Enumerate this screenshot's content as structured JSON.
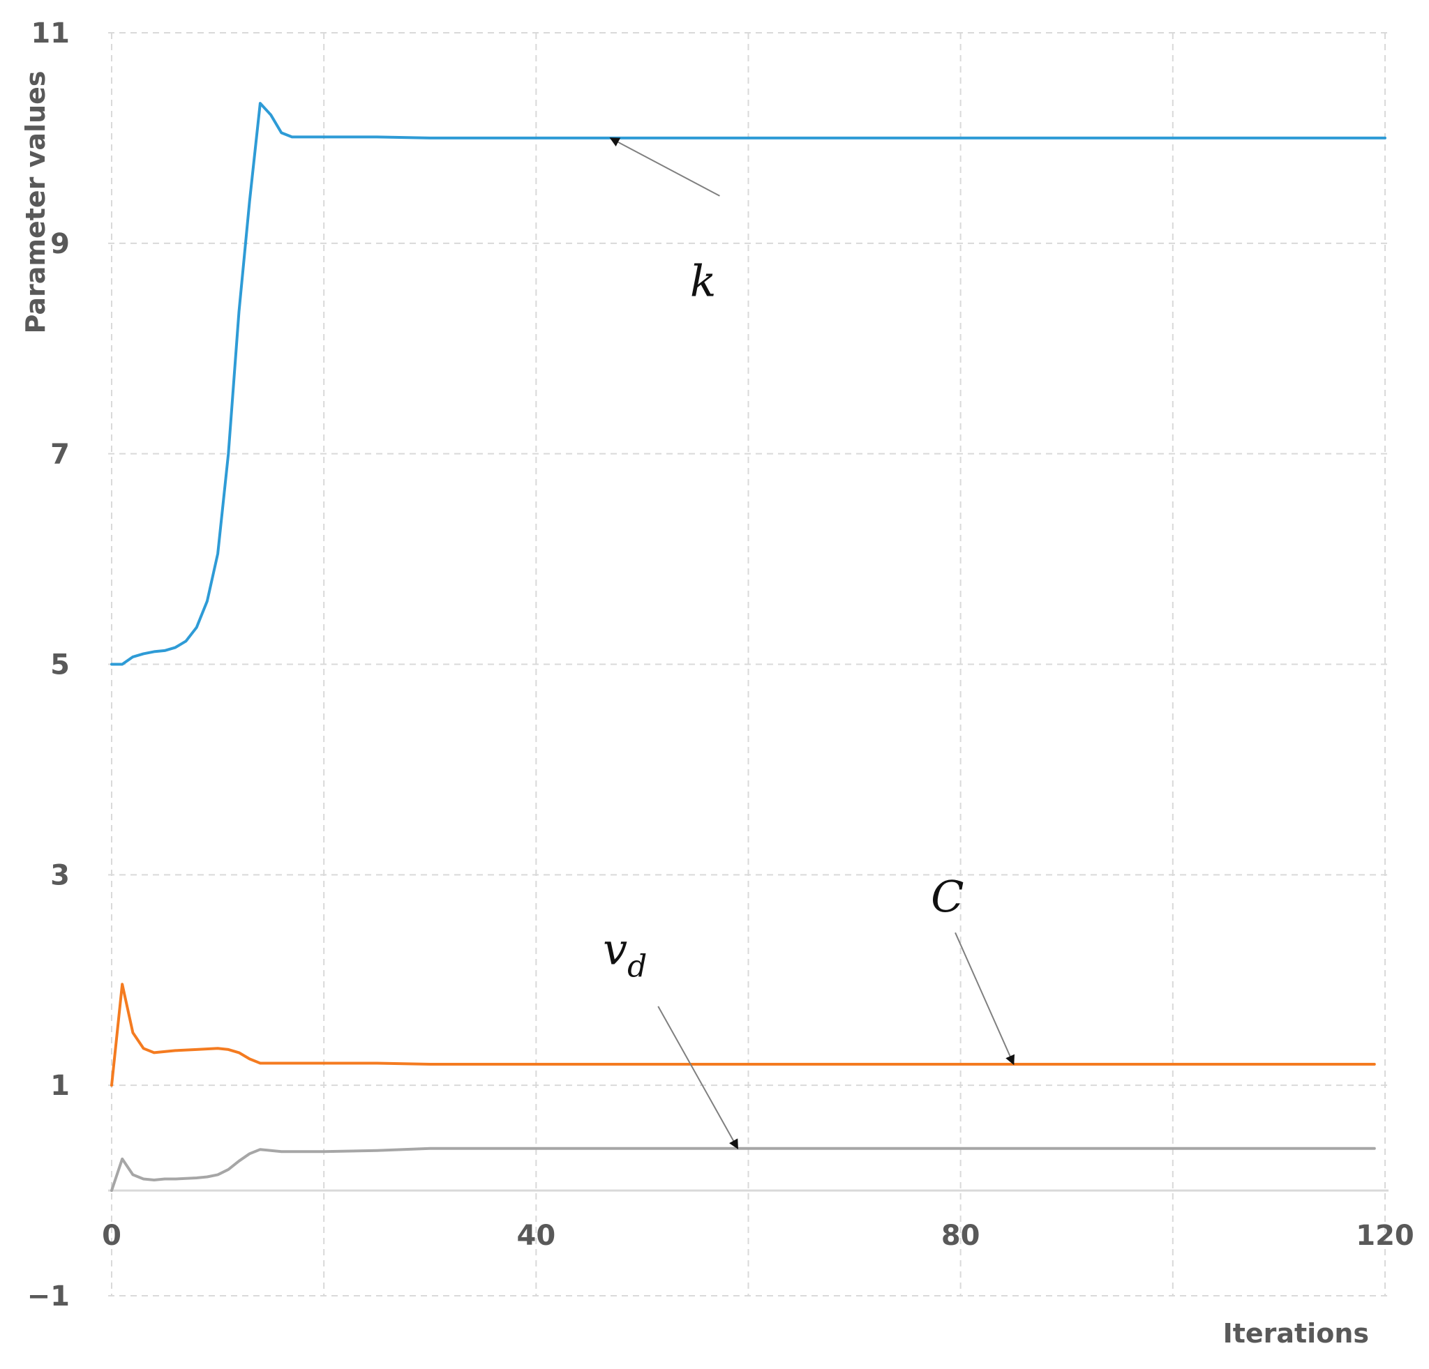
{
  "chart_data": {
    "type": "line",
    "ylabel": "Parameter values",
    "xlabel": "Iterations",
    "xlim": [
      0,
      120
    ],
    "ylim": [
      -1,
      11
    ],
    "x_ticks": [
      0,
      40,
      80,
      120
    ],
    "x_tick_labels": [
      "0",
      "40",
      "80",
      "120"
    ],
    "y_ticks": [
      -1,
      1,
      3,
      5,
      7,
      9,
      11
    ],
    "y_tick_labels": [
      "−1",
      "1",
      "3",
      "5",
      "7",
      "9",
      "11"
    ],
    "grid": true,
    "series": [
      {
        "name": "k",
        "color": "#2E9BD6",
        "x": [
          0,
          1,
          2,
          3,
          4,
          5,
          6,
          7,
          8,
          9,
          10,
          11,
          12,
          13,
          14,
          15,
          16,
          17,
          18,
          20,
          25,
          30,
          40,
          60,
          80,
          100,
          120
        ],
        "y": [
          5.0,
          5.0,
          5.07,
          5.1,
          5.12,
          5.13,
          5.16,
          5.22,
          5.35,
          5.6,
          6.05,
          7.0,
          8.35,
          9.4,
          10.33,
          10.22,
          10.05,
          10.01,
          10.01,
          10.01,
          10.01,
          10.0,
          10.0,
          10.0,
          10.0,
          10.0,
          10.0
        ]
      },
      {
        "name": "C",
        "color": "#F47B20",
        "x": [
          0,
          1,
          2,
          3,
          4,
          5,
          6,
          8,
          10,
          11,
          12,
          13,
          14,
          15,
          16,
          18,
          20,
          25,
          30,
          40,
          60,
          80,
          100,
          119
        ],
        "y": [
          1.0,
          1.96,
          1.5,
          1.35,
          1.31,
          1.32,
          1.33,
          1.34,
          1.35,
          1.34,
          1.31,
          1.25,
          1.21,
          1.21,
          1.21,
          1.21,
          1.21,
          1.21,
          1.2,
          1.2,
          1.2,
          1.2,
          1.2,
          1.2
        ]
      },
      {
        "name": "v_d",
        "color": "#A6A6A6",
        "x": [
          0,
          1,
          2,
          3,
          4,
          5,
          6,
          8,
          9,
          10,
          11,
          12,
          13,
          14,
          15,
          16,
          17,
          18,
          20,
          25,
          30,
          40,
          60,
          80,
          100,
          119
        ],
        "y": [
          0.0,
          0.3,
          0.15,
          0.11,
          0.1,
          0.11,
          0.11,
          0.12,
          0.13,
          0.15,
          0.2,
          0.28,
          0.35,
          0.39,
          0.38,
          0.37,
          0.37,
          0.37,
          0.37,
          0.38,
          0.4,
          0.4,
          0.4,
          0.4,
          0.4,
          0.4
        ]
      }
    ],
    "annotations": [
      {
        "series": "k",
        "label": "k",
        "x": 47,
        "y": 10.0
      },
      {
        "series": "C",
        "label": "C",
        "subscript": "",
        "x": 85,
        "y": 1.2
      },
      {
        "series": "v_d",
        "label": "v",
        "subscript": "d",
        "x": 59,
        "y": 0.4
      }
    ]
  }
}
